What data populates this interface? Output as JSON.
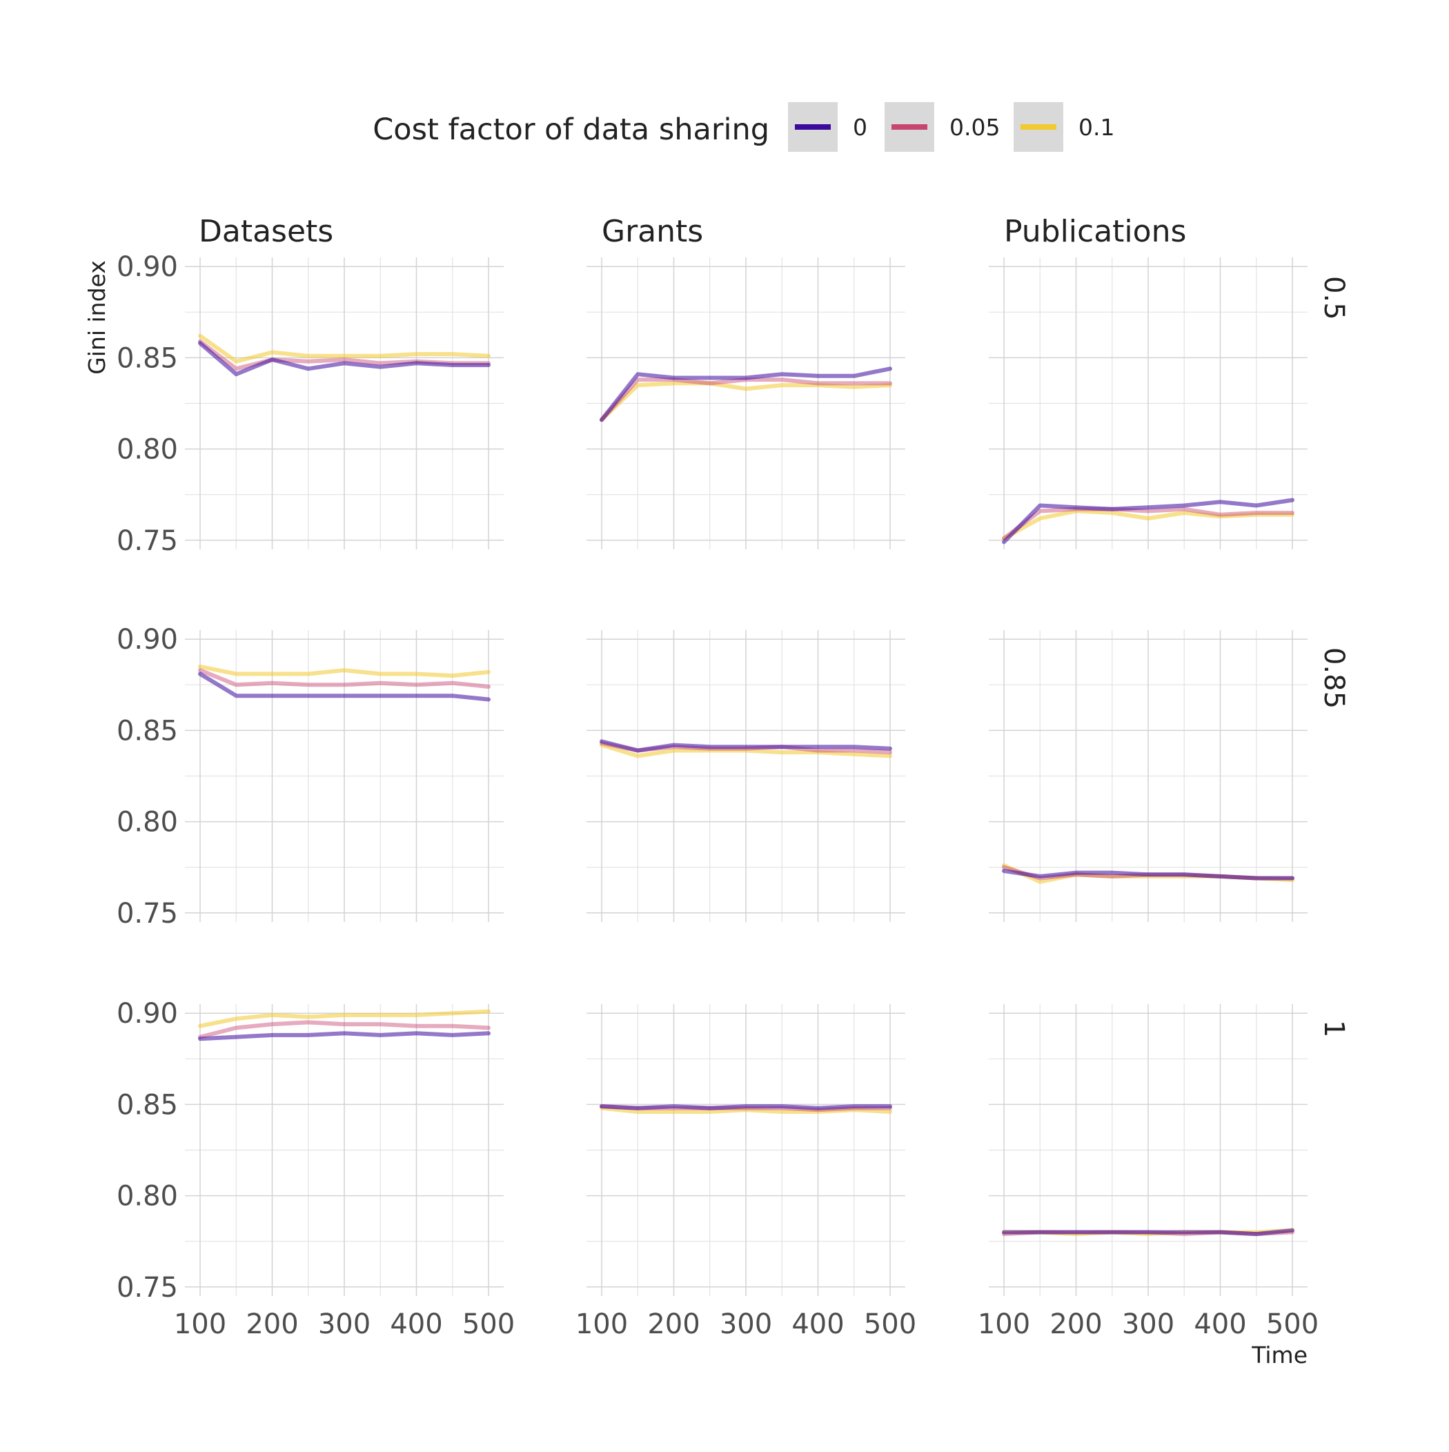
{
  "legend": {
    "title": "Cost factor of data sharing",
    "items": [
      {
        "label": "0",
        "color": "#3d0a9e"
      },
      {
        "label": "0.05",
        "color": "#c8456f"
      },
      {
        "label": "0.1",
        "color": "#f2c92f"
      }
    ]
  },
  "axes": {
    "ylabel": "Gini index",
    "xlabel": "Time",
    "x_ticks": [
      "100",
      "200",
      "300",
      "400",
      "500"
    ],
    "y_ticks": [
      "0.75",
      "0.80",
      "0.85",
      "0.90"
    ]
  },
  "chart_data": {
    "type": "line",
    "facet_columns": [
      "Datasets",
      "Grants",
      "Publications"
    ],
    "facet_rows": [
      "0.5",
      "0.85",
      "1"
    ],
    "x": [
      100,
      150,
      200,
      250,
      300,
      350,
      400,
      450,
      500
    ],
    "xlim": [
      100,
      500
    ],
    "ylim": [
      0.745,
      0.905
    ],
    "grid": true,
    "legend_position": "top",
    "series_names": [
      "0",
      "0.05",
      "0.1"
    ],
    "panels": [
      {
        "column": "Datasets",
        "row": "0.5",
        "series": [
          {
            "name": "0",
            "values": [
              0.858,
              0.841,
              0.849,
              0.844,
              0.847,
              0.845,
              0.847,
              0.846,
              0.846
            ]
          },
          {
            "name": "0.05",
            "values": [
              0.859,
              0.844,
              0.849,
              0.848,
              0.849,
              0.847,
              0.848,
              0.847,
              0.847
            ]
          },
          {
            "name": "0.1",
            "values": [
              0.862,
              0.848,
              0.853,
              0.851,
              0.851,
              0.851,
              0.852,
              0.852,
              0.851
            ]
          }
        ]
      },
      {
        "column": "Grants",
        "row": "0.5",
        "series": [
          {
            "name": "0",
            "values": [
              0.816,
              0.841,
              0.839,
              0.839,
              0.839,
              0.841,
              0.84,
              0.84,
              0.844
            ]
          },
          {
            "name": "0.05",
            "values": [
              0.816,
              0.838,
              0.838,
              0.836,
              0.838,
              0.838,
              0.836,
              0.836,
              0.836
            ]
          },
          {
            "name": "0.1",
            "values": [
              0.816,
              0.835,
              0.836,
              0.836,
              0.833,
              0.835,
              0.835,
              0.834,
              0.835
            ]
          }
        ]
      },
      {
        "column": "Publications",
        "row": "0.5",
        "series": [
          {
            "name": "0",
            "values": [
              0.749,
              0.769,
              0.768,
              0.767,
              0.768,
              0.769,
              0.771,
              0.769,
              0.772
            ]
          },
          {
            "name": "0.05",
            "values": [
              0.751,
              0.766,
              0.767,
              0.767,
              0.766,
              0.767,
              0.764,
              0.765,
              0.765
            ]
          },
          {
            "name": "0.1",
            "values": [
              0.751,
              0.762,
              0.766,
              0.765,
              0.762,
              0.765,
              0.763,
              0.764,
              0.764
            ]
          }
        ]
      },
      {
        "column": "Datasets",
        "row": "0.85",
        "series": [
          {
            "name": "0",
            "values": [
              0.881,
              0.869,
              0.869,
              0.869,
              0.869,
              0.869,
              0.869,
              0.869,
              0.867
            ]
          },
          {
            "name": "0.05",
            "values": [
              0.883,
              0.875,
              0.876,
              0.875,
              0.875,
              0.876,
              0.875,
              0.876,
              0.874
            ]
          },
          {
            "name": "0.1",
            "values": [
              0.885,
              0.881,
              0.881,
              0.881,
              0.883,
              0.881,
              0.881,
              0.88,
              0.882
            ]
          }
        ]
      },
      {
        "column": "Grants",
        "row": "0.85",
        "series": [
          {
            "name": "0",
            "values": [
              0.844,
              0.839,
              0.842,
              0.841,
              0.841,
              0.841,
              0.841,
              0.841,
              0.84
            ]
          },
          {
            "name": "0.05",
            "values": [
              0.843,
              0.839,
              0.841,
              0.84,
              0.84,
              0.841,
              0.839,
              0.839,
              0.838
            ]
          },
          {
            "name": "0.1",
            "values": [
              0.842,
              0.836,
              0.839,
              0.839,
              0.839,
              0.838,
              0.838,
              0.837,
              0.836
            ]
          }
        ]
      },
      {
        "column": "Publications",
        "row": "0.85",
        "series": [
          {
            "name": "0",
            "values": [
              0.773,
              0.77,
              0.772,
              0.772,
              0.771,
              0.771,
              0.77,
              0.769,
              0.769
            ]
          },
          {
            "name": "0.05",
            "values": [
              0.775,
              0.769,
              0.771,
              0.77,
              0.771,
              0.771,
              0.77,
              0.769,
              0.769
            ]
          },
          {
            "name": "0.1",
            "values": [
              0.776,
              0.767,
              0.771,
              0.77,
              0.77,
              0.77,
              0.77,
              0.769,
              0.768
            ]
          }
        ]
      },
      {
        "column": "Datasets",
        "row": "1",
        "series": [
          {
            "name": "0",
            "values": [
              0.886,
              0.887,
              0.888,
              0.888,
              0.889,
              0.888,
              0.889,
              0.888,
              0.889
            ]
          },
          {
            "name": "0.05",
            "values": [
              0.887,
              0.892,
              0.894,
              0.895,
              0.894,
              0.894,
              0.893,
              0.893,
              0.892
            ]
          },
          {
            "name": "0.1",
            "values": [
              0.893,
              0.897,
              0.899,
              0.898,
              0.899,
              0.899,
              0.899,
              0.9,
              0.901
            ]
          }
        ]
      },
      {
        "column": "Grants",
        "row": "1",
        "series": [
          {
            "name": "0",
            "values": [
              0.849,
              0.848,
              0.849,
              0.848,
              0.849,
              0.849,
              0.848,
              0.849,
              0.849
            ]
          },
          {
            "name": "0.05",
            "values": [
              0.849,
              0.848,
              0.848,
              0.848,
              0.848,
              0.848,
              0.847,
              0.848,
              0.848
            ]
          },
          {
            "name": "0.1",
            "values": [
              0.848,
              0.846,
              0.846,
              0.846,
              0.847,
              0.846,
              0.846,
              0.847,
              0.846
            ]
          }
        ]
      },
      {
        "column": "Publications",
        "row": "1",
        "series": [
          {
            "name": "0",
            "values": [
              0.78,
              0.78,
              0.78,
              0.78,
              0.78,
              0.78,
              0.78,
              0.779,
              0.781
            ]
          },
          {
            "name": "0.05",
            "values": [
              0.779,
              0.78,
              0.78,
              0.78,
              0.78,
              0.779,
              0.78,
              0.779,
              0.78
            ]
          },
          {
            "name": "0.1",
            "values": [
              0.78,
              0.78,
              0.779,
              0.78,
              0.779,
              0.78,
              0.78,
              0.78,
              0.781
            ]
          }
        ]
      }
    ]
  }
}
